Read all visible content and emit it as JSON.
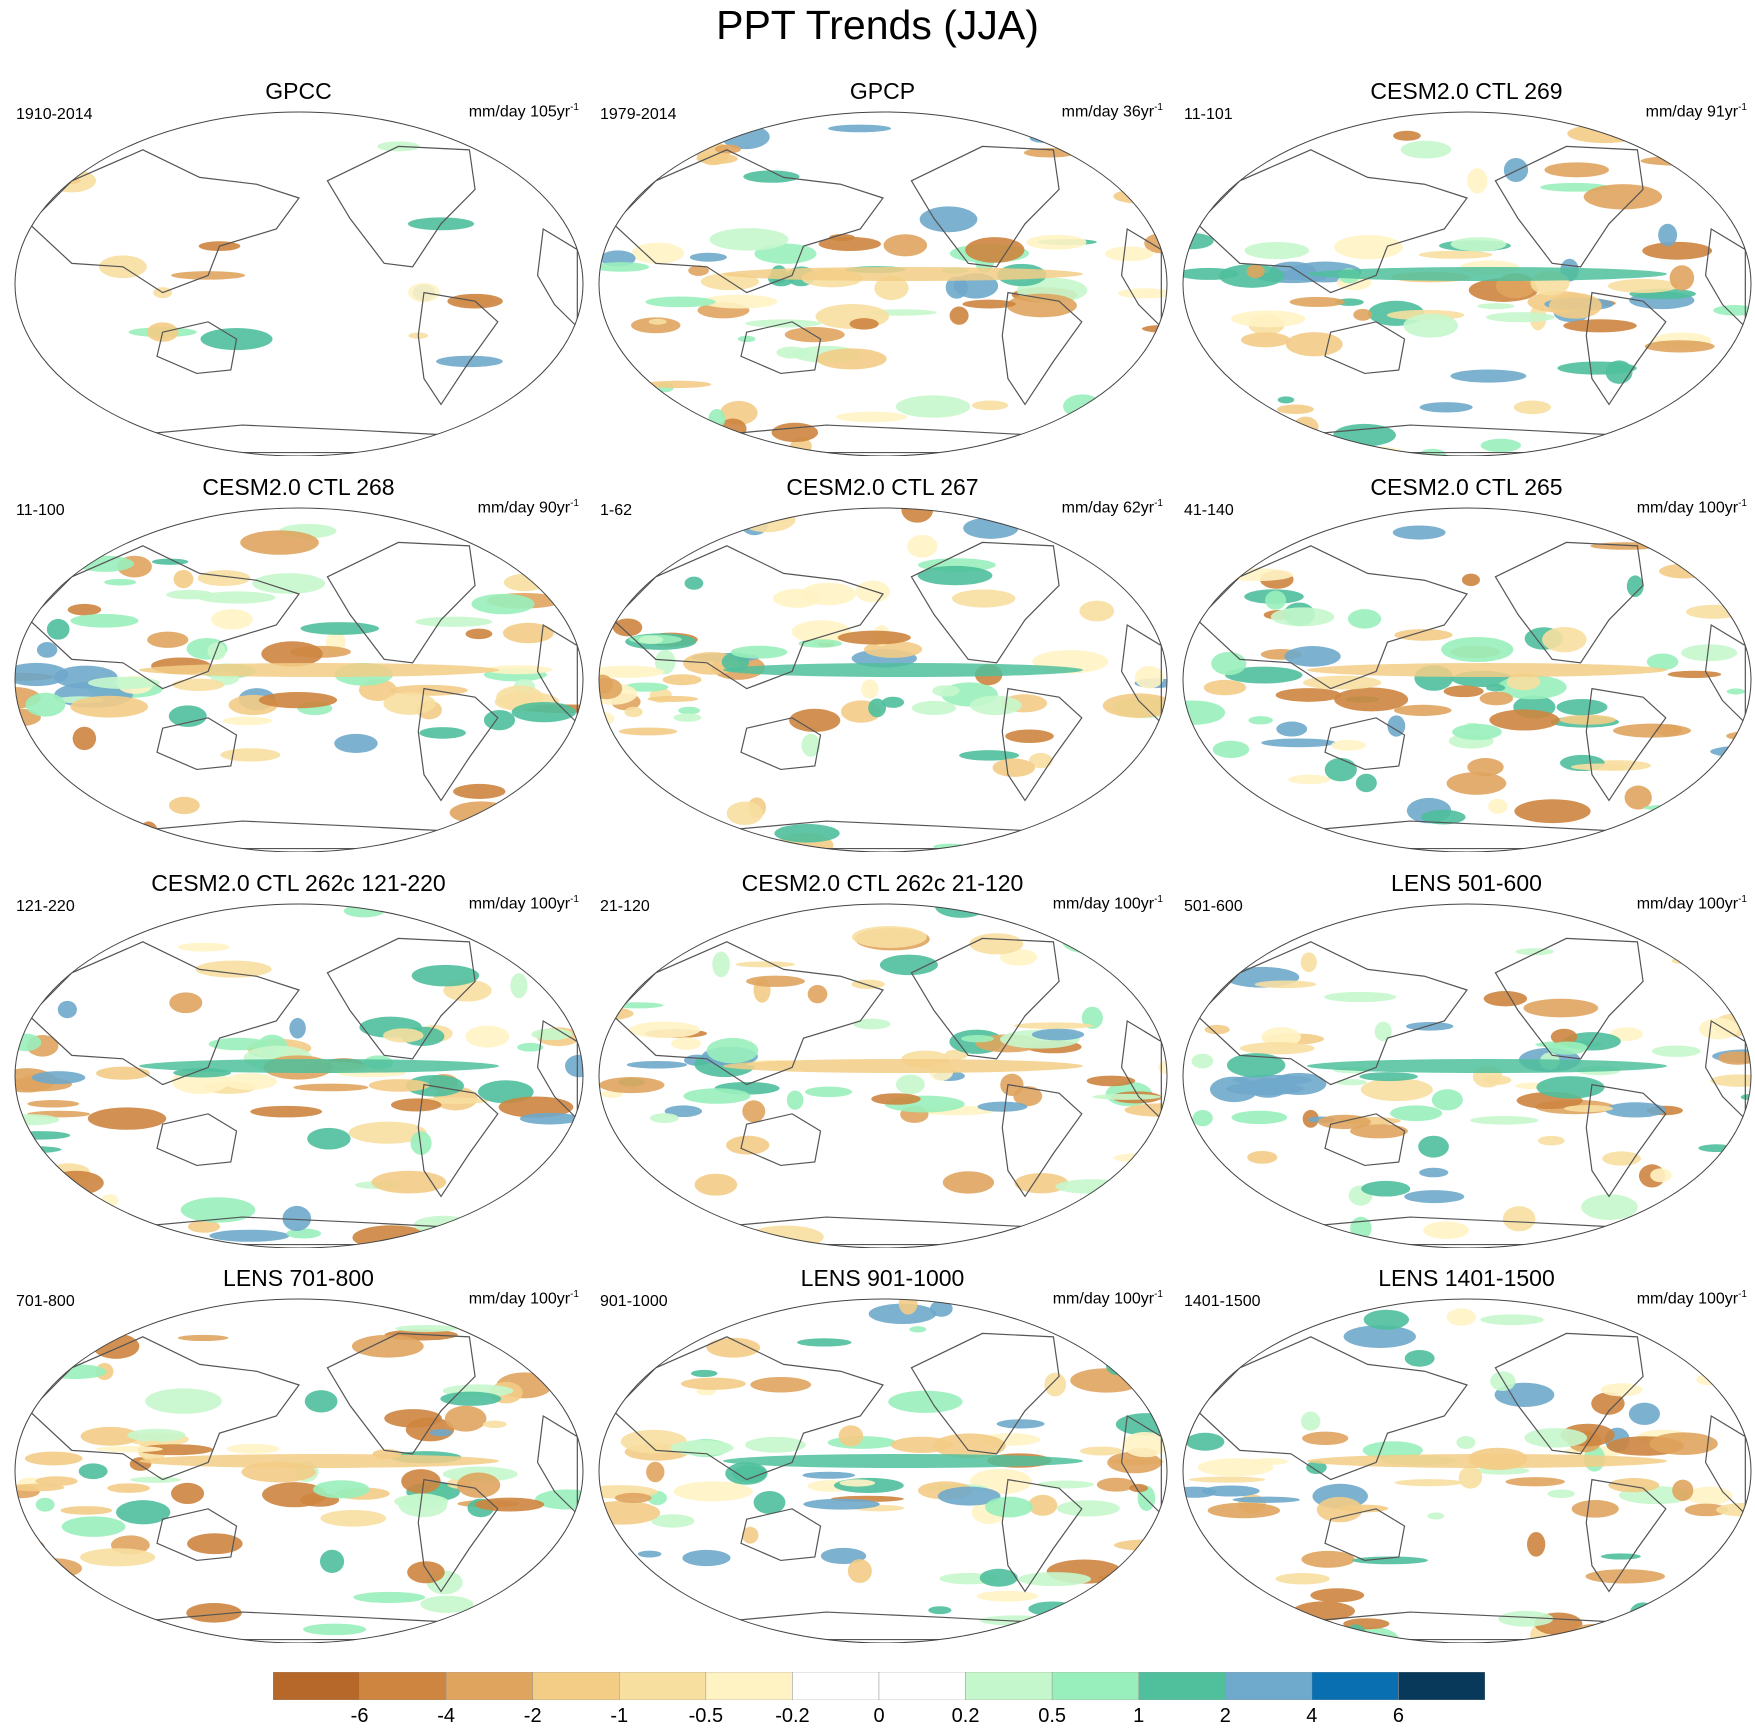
{
  "title": "PPT Trends (JJA)",
  "panels": [
    {
      "title": "GPCC",
      "left_label": "1910-2014",
      "right_label": "mm/day 105yr",
      "sup": "-1"
    },
    {
      "title": "GPCP",
      "left_label": "1979-2014",
      "right_label": "mm/day 36yr",
      "sup": "-1"
    },
    {
      "title": "CESM2.0 CTL 269",
      "left_label": "11-101",
      "right_label": "mm/day 91yr",
      "sup": "-1"
    },
    {
      "title": "CESM2.0 CTL 268",
      "left_label": "11-100",
      "right_label": "mm/day 90yr",
      "sup": "-1"
    },
    {
      "title": "CESM2.0 CTL 267",
      "left_label": "1-62",
      "right_label": "mm/day 62yr",
      "sup": "-1"
    },
    {
      "title": "CESM2.0 CTL 265",
      "left_label": "41-140",
      "right_label": "mm/day 100yr",
      "sup": "-1"
    },
    {
      "title": "CESM2.0 CTL 262c 121-220",
      "left_label": "121-220",
      "right_label": "mm/day 100yr",
      "sup": "-1"
    },
    {
      "title": "CESM2.0 CTL 262c 21-120",
      "left_label": "21-120",
      "right_label": "mm/day 100yr",
      "sup": "-1"
    },
    {
      "title": "LENS 501-600",
      "left_label": "501-600",
      "right_label": "mm/day 100yr",
      "sup": "-1"
    },
    {
      "title": "LENS 701-800",
      "left_label": "701-800",
      "right_label": "mm/day 100yr",
      "sup": "-1"
    },
    {
      "title": "LENS 901-1000",
      "left_label": "901-1000",
      "right_label": "mm/day 100yr",
      "sup": "-1"
    },
    {
      "title": "LENS 1401-1500",
      "left_label": "1401-1500",
      "right_label": "mm/day 100yr",
      "sup": "-1"
    }
  ],
  "colorbar": {
    "colors": [
      "#b5682a",
      "#cd853f",
      "#dfa45e",
      "#f3cc86",
      "#f7dfa0",
      "#fff3c4",
      "#ffffff",
      "#ffffff",
      "#c5f7cc",
      "#99efbb",
      "#4fbf9c",
      "#6fa9cb",
      "#0a6fb0",
      "#08385a"
    ],
    "labels": [
      "-6",
      "-4",
      "-2",
      "-1",
      "-0.5",
      "-0.2",
      "0",
      "0.2",
      "0.5",
      "1",
      "2",
      "4",
      "6"
    ]
  }
}
